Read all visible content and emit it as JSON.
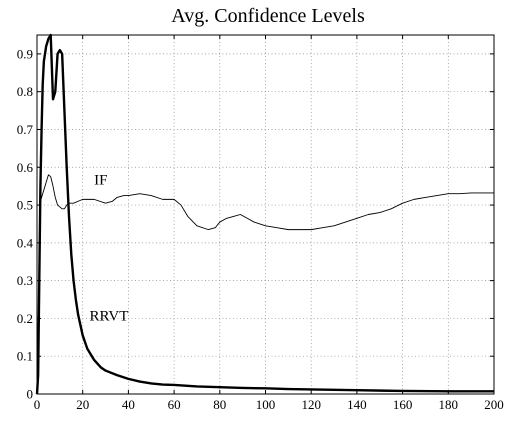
{
  "chart_data": {
    "type": "line",
    "title": "Avg. Confidence Levels",
    "xlabel": "",
    "ylabel": "",
    "xlim": [
      0,
      200
    ],
    "ylim": [
      0,
      0.95
    ],
    "grid": true,
    "xticks": [
      0,
      20,
      40,
      60,
      80,
      100,
      120,
      140,
      160,
      180,
      200
    ],
    "yticks": [
      0,
      0.1,
      0.2,
      0.3,
      0.4,
      0.5,
      0.6,
      0.7,
      0.8,
      0.9
    ],
    "series": [
      {
        "name": "IF",
        "x": [
          1,
          2,
          3,
          4,
          5,
          6,
          7,
          8,
          9,
          10,
          11,
          12,
          13,
          14,
          15,
          16,
          18,
          20,
          25,
          30,
          33,
          35,
          38,
          40,
          45,
          50,
          55,
          60,
          63,
          66,
          70,
          75,
          78,
          80,
          83,
          86,
          89,
          92,
          95,
          100,
          105,
          110,
          115,
          120,
          125,
          130,
          135,
          140,
          145,
          150,
          155,
          160,
          165,
          170,
          175,
          180,
          185,
          190,
          195,
          200
        ],
        "y": [
          0.5,
          0.52,
          0.54,
          0.56,
          0.58,
          0.575,
          0.55,
          0.52,
          0.5,
          0.495,
          0.49,
          0.49,
          0.5,
          0.505,
          0.505,
          0.505,
          0.51,
          0.515,
          0.515,
          0.505,
          0.51,
          0.52,
          0.525,
          0.525,
          0.53,
          0.525,
          0.515,
          0.515,
          0.5,
          0.47,
          0.445,
          0.435,
          0.44,
          0.455,
          0.465,
          0.47,
          0.475,
          0.465,
          0.455,
          0.445,
          0.44,
          0.435,
          0.435,
          0.435,
          0.44,
          0.445,
          0.455,
          0.465,
          0.475,
          0.48,
          0.49,
          0.505,
          0.515,
          0.52,
          0.525,
          0.53,
          0.53,
          0.532,
          0.532,
          0.532
        ]
      },
      {
        "name": "RRVT",
        "x": [
          0,
          0.5,
          1,
          1.5,
          2,
          2.5,
          3,
          4,
          5,
          6,
          7,
          8,
          9,
          10,
          11,
          12,
          13,
          14,
          15,
          16,
          17,
          18,
          20,
          22,
          25,
          28,
          30,
          35,
          40,
          45,
          50,
          55,
          60,
          70,
          80,
          90,
          100,
          110,
          120,
          140,
          160,
          180,
          200
        ],
        "y": [
          0.0,
          0.05,
          0.3,
          0.55,
          0.7,
          0.82,
          0.88,
          0.92,
          0.94,
          0.95,
          0.78,
          0.8,
          0.9,
          0.91,
          0.9,
          0.75,
          0.6,
          0.47,
          0.37,
          0.3,
          0.25,
          0.21,
          0.155,
          0.12,
          0.09,
          0.07,
          0.062,
          0.05,
          0.04,
          0.033,
          0.028,
          0.025,
          0.024,
          0.02,
          0.018,
          0.016,
          0.015,
          0.013,
          0.012,
          0.01,
          0.008,
          0.007,
          0.007
        ]
      }
    ],
    "annotations": [
      {
        "text": "IF",
        "x": 25,
        "y": 0.555
      },
      {
        "text": "RRVT",
        "x": 23,
        "y": 0.195
      }
    ]
  }
}
